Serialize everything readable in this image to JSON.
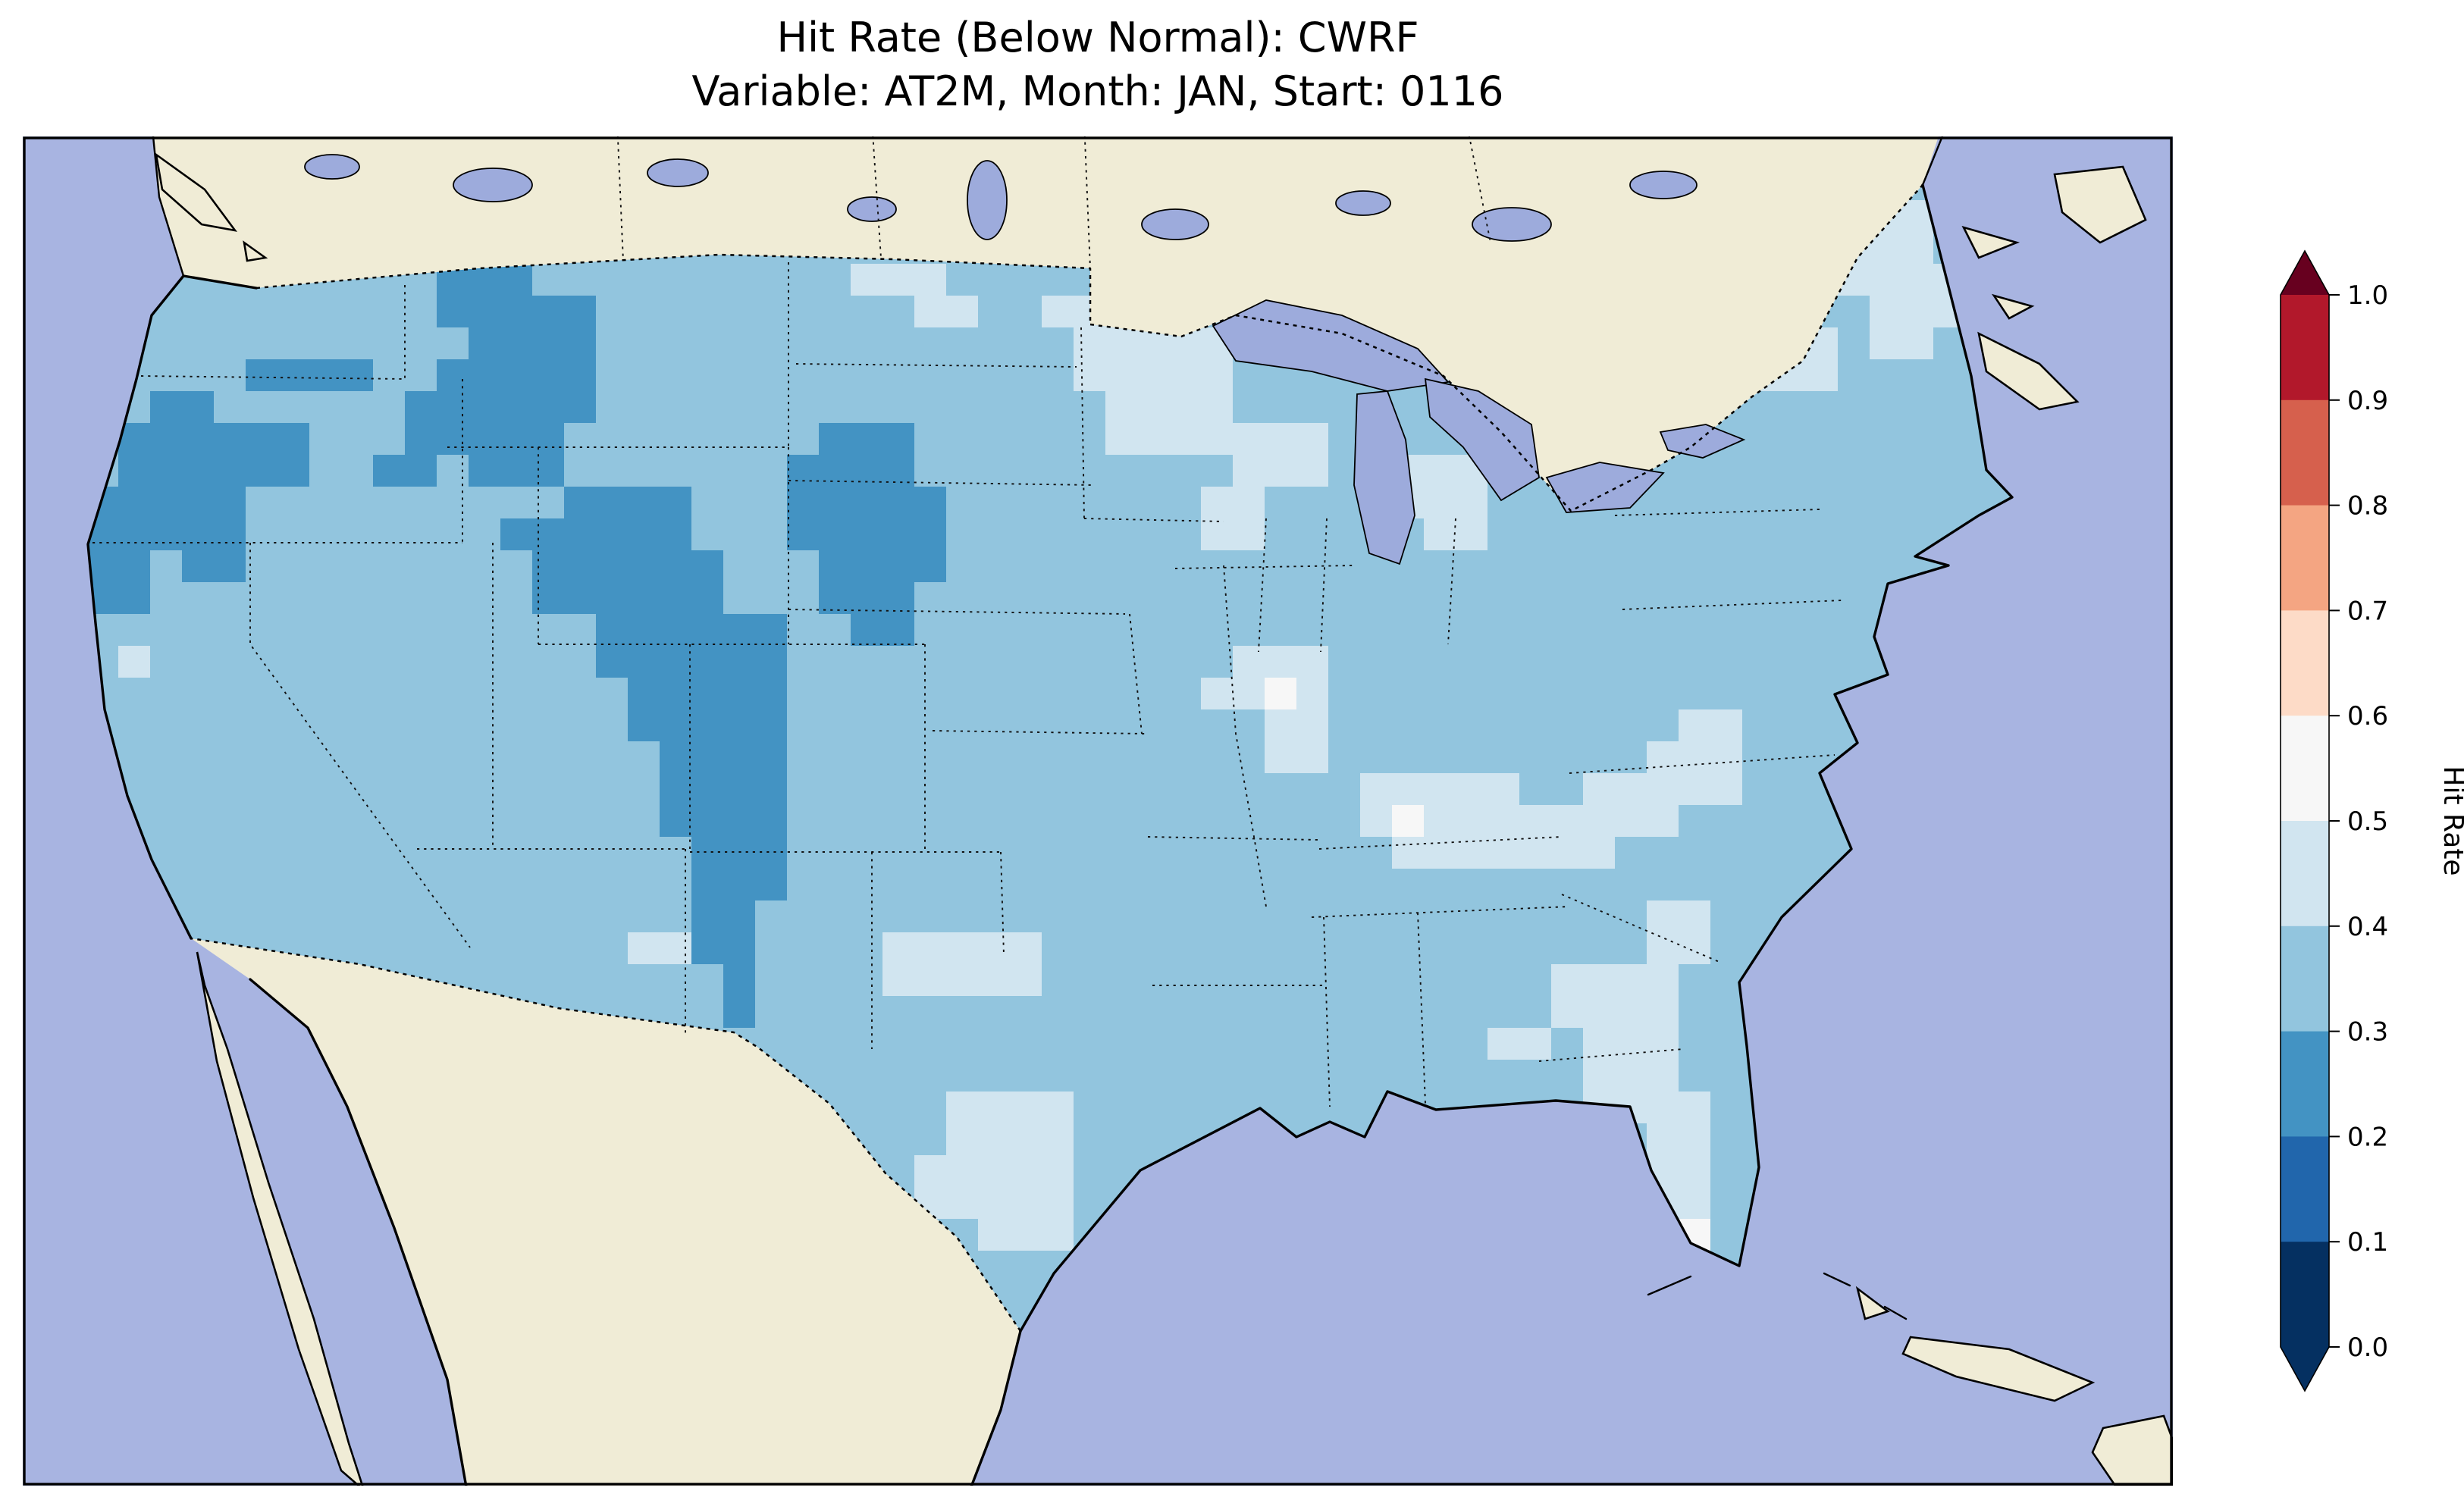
{
  "figure": {
    "title_line1": "Hit Rate (Below Normal): CWRF",
    "title_line2": "Variable: AT2M, Month: JAN, Start: 0116"
  },
  "colorbar": {
    "label": "Hit Rate",
    "ticks": [
      "1.0",
      "0.9",
      "0.8",
      "0.7",
      "0.6",
      "0.5",
      "0.4",
      "0.3",
      "0.2",
      "0.1",
      "0.0"
    ],
    "over_color": "#67001f",
    "under_color": "#053061",
    "segments": [
      {
        "range": "0.9-1.0",
        "color": "#b2182b"
      },
      {
        "range": "0.8-0.9",
        "color": "#d6604d"
      },
      {
        "range": "0.7-0.8",
        "color": "#f4a582"
      },
      {
        "range": "0.6-0.7",
        "color": "#fddbc7"
      },
      {
        "range": "0.5-0.6",
        "color": "#f7f7f7"
      },
      {
        "range": "0.4-0.5",
        "color": "#d1e5f0"
      },
      {
        "range": "0.3-0.4",
        "color": "#92c5de"
      },
      {
        "range": "0.2-0.3",
        "color": "#4393c3"
      },
      {
        "range": "0.1-0.2",
        "color": "#2166ac"
      },
      {
        "range": "0.0-0.1",
        "color": "#053061"
      }
    ]
  },
  "map": {
    "ocean_color": "#a8b4e1",
    "lake_color": "#9dabdc",
    "foreign_land_color": "#f0ecd6",
    "coast_color": "#000000"
  },
  "chart_data": {
    "type": "heatmap",
    "title": "Hit Rate (Below Normal): CWRF — Variable: AT2M, Month: JAN, Start: 0116",
    "metric": "Hit Rate (Below Normal)",
    "model": "CWRF",
    "variable": "AT2M",
    "month": "JAN",
    "start": "0116",
    "domain": "CONUS (contiguous United States), gridded model cells",
    "colormap": "RdBu discrete, 10 bins, extended both ends",
    "value_range": [
      0.0,
      1.0
    ],
    "legend_ticks": [
      0.0,
      0.1,
      0.2,
      0.3,
      0.4,
      0.5,
      0.6,
      0.7,
      0.8,
      0.9,
      1.0
    ],
    "legend_position": "right vertical colorbar",
    "units_note": "patch rects are in map-local units; 21 units ~ one model grid cell",
    "base_bin": {
      "range": "0.3-0.4",
      "note": "dominant hit-rate bin covering most of CONUS"
    },
    "patches": [
      {
        "bin": "0.2-0.3",
        "region": "Montana / Northern Rockies",
        "rects": [
          [
            273,
            84,
            63,
            42
          ],
          [
            294,
            105,
            84,
            63
          ],
          [
            273,
            147,
            105,
            42
          ],
          [
            294,
            189,
            63,
            42
          ],
          [
            252,
            168,
            42,
            42
          ],
          [
            231,
            210,
            42,
            21
          ]
        ]
      },
      {
        "bin": "0.2-0.3",
        "region": "Pacific Northwest and Oregon coast",
        "rects": [
          [
            147,
            147,
            42,
            21
          ],
          [
            168,
            147,
            63,
            21
          ],
          [
            63,
            189,
            126,
            42
          ],
          [
            42,
            231,
            105,
            42
          ],
          [
            84,
            168,
            42,
            21
          ],
          [
            42,
            273,
            42,
            42
          ],
          [
            105,
            273,
            42,
            21
          ]
        ]
      },
      {
        "bin": "0.2-0.3",
        "region": "Wyoming-Colorado Rockies / High Plains",
        "rects": [
          [
            315,
            252,
            63,
            21
          ],
          [
            357,
            231,
            84,
            42
          ],
          [
            336,
            273,
            126,
            42
          ],
          [
            378,
            315,
            126,
            42
          ],
          [
            399,
            357,
            105,
            42
          ],
          [
            420,
            399,
            84,
            63
          ],
          [
            441,
            462,
            63,
            42
          ],
          [
            441,
            504,
            42,
            42
          ],
          [
            462,
            546,
            21,
            42
          ]
        ]
      },
      {
        "bin": "0.2-0.3",
        "region": "Western Nebraska / South Dakota",
        "rects": [
          [
            525,
            189,
            63,
            21
          ],
          [
            504,
            210,
            84,
            63
          ],
          [
            546,
            231,
            63,
            63
          ],
          [
            525,
            273,
            63,
            42
          ],
          [
            546,
            315,
            42,
            21
          ]
        ]
      },
      {
        "bin": "0.4-0.5",
        "region": "Upper Midwest (ND/MN/WI)",
        "rects": [
          [
            546,
            84,
            63,
            21
          ],
          [
            588,
            105,
            42,
            21
          ],
          [
            672,
            105,
            63,
            21
          ],
          [
            693,
            126,
            105,
            42
          ],
          [
            714,
            168,
            84,
            42
          ],
          [
            798,
            189,
            63,
            42
          ],
          [
            777,
            231,
            42,
            42
          ]
        ]
      },
      {
        "bin": "0.4-0.5",
        "region": "Lower Michigan",
        "rects": [
          [
            903,
            210,
            63,
            42
          ],
          [
            924,
            252,
            42,
            21
          ]
        ]
      },
      {
        "bin": "0.4-0.5",
        "region": "Central Midwest (IL/IN)",
        "rects": [
          [
            777,
            357,
            42,
            21
          ],
          [
            798,
            336,
            63,
            42
          ],
          [
            819,
            378,
            42,
            42
          ]
        ]
      },
      {
        "bin": "0.4-0.5",
        "region": "Mid-South (MO/KY/TN)",
        "rects": [
          [
            882,
            420,
            105,
            42
          ],
          [
            966,
            441,
            84,
            42
          ],
          [
            903,
            462,
            84,
            21
          ],
          [
            1029,
            420,
            42,
            21
          ]
        ]
      },
      {
        "bin": "0.4-0.5",
        "region": "Mid-Atlantic (VA/NC)",
        "rects": [
          [
            1071,
            399,
            63,
            42
          ],
          [
            1050,
            441,
            42,
            21
          ],
          [
            1092,
            378,
            42,
            21
          ]
        ]
      },
      {
        "bin": "0.4-0.5",
        "region": "Southeast (SC/GA/FL)",
        "rects": [
          [
            1008,
            546,
            84,
            42
          ],
          [
            1029,
            588,
            63,
            63
          ],
          [
            1071,
            630,
            42,
            84
          ],
          [
            966,
            588,
            42,
            21
          ],
          [
            1071,
            504,
            42,
            42
          ]
        ]
      },
      {
        "bin": "0.4-0.5",
        "region": "Texas",
        "rects": [
          [
            567,
            525,
            105,
            42
          ],
          [
            609,
            630,
            84,
            63
          ],
          [
            630,
            693,
            63,
            42
          ],
          [
            588,
            672,
            42,
            42
          ]
        ]
      },
      {
        "bin": "0.4-0.5",
        "region": "New Mexico / Great Basin spots",
        "rects": [
          [
            399,
            525,
            42,
            21
          ],
          [
            63,
            336,
            21,
            21
          ]
        ]
      },
      {
        "bin": "0.4-0.5",
        "region": "Northeast (NY/New England/Maine)",
        "rects": [
          [
            1113,
            84,
            63,
            42
          ],
          [
            1134,
            126,
            63,
            42
          ],
          [
            1155,
            63,
            42,
            21
          ],
          [
            1197,
            42,
            63,
            63
          ],
          [
            1218,
            105,
            42,
            42
          ],
          [
            1239,
            84,
            42,
            42
          ]
        ]
      },
      {
        "bin": "0.5-0.6",
        "region": "Scattered near-0.5 cells",
        "rects": [
          [
            819,
            357,
            21,
            21
          ],
          [
            903,
            441,
            21,
            21
          ],
          [
            1092,
            714,
            21,
            21
          ],
          [
            1071,
            735,
            21,
            21
          ]
        ]
      }
    ]
  }
}
